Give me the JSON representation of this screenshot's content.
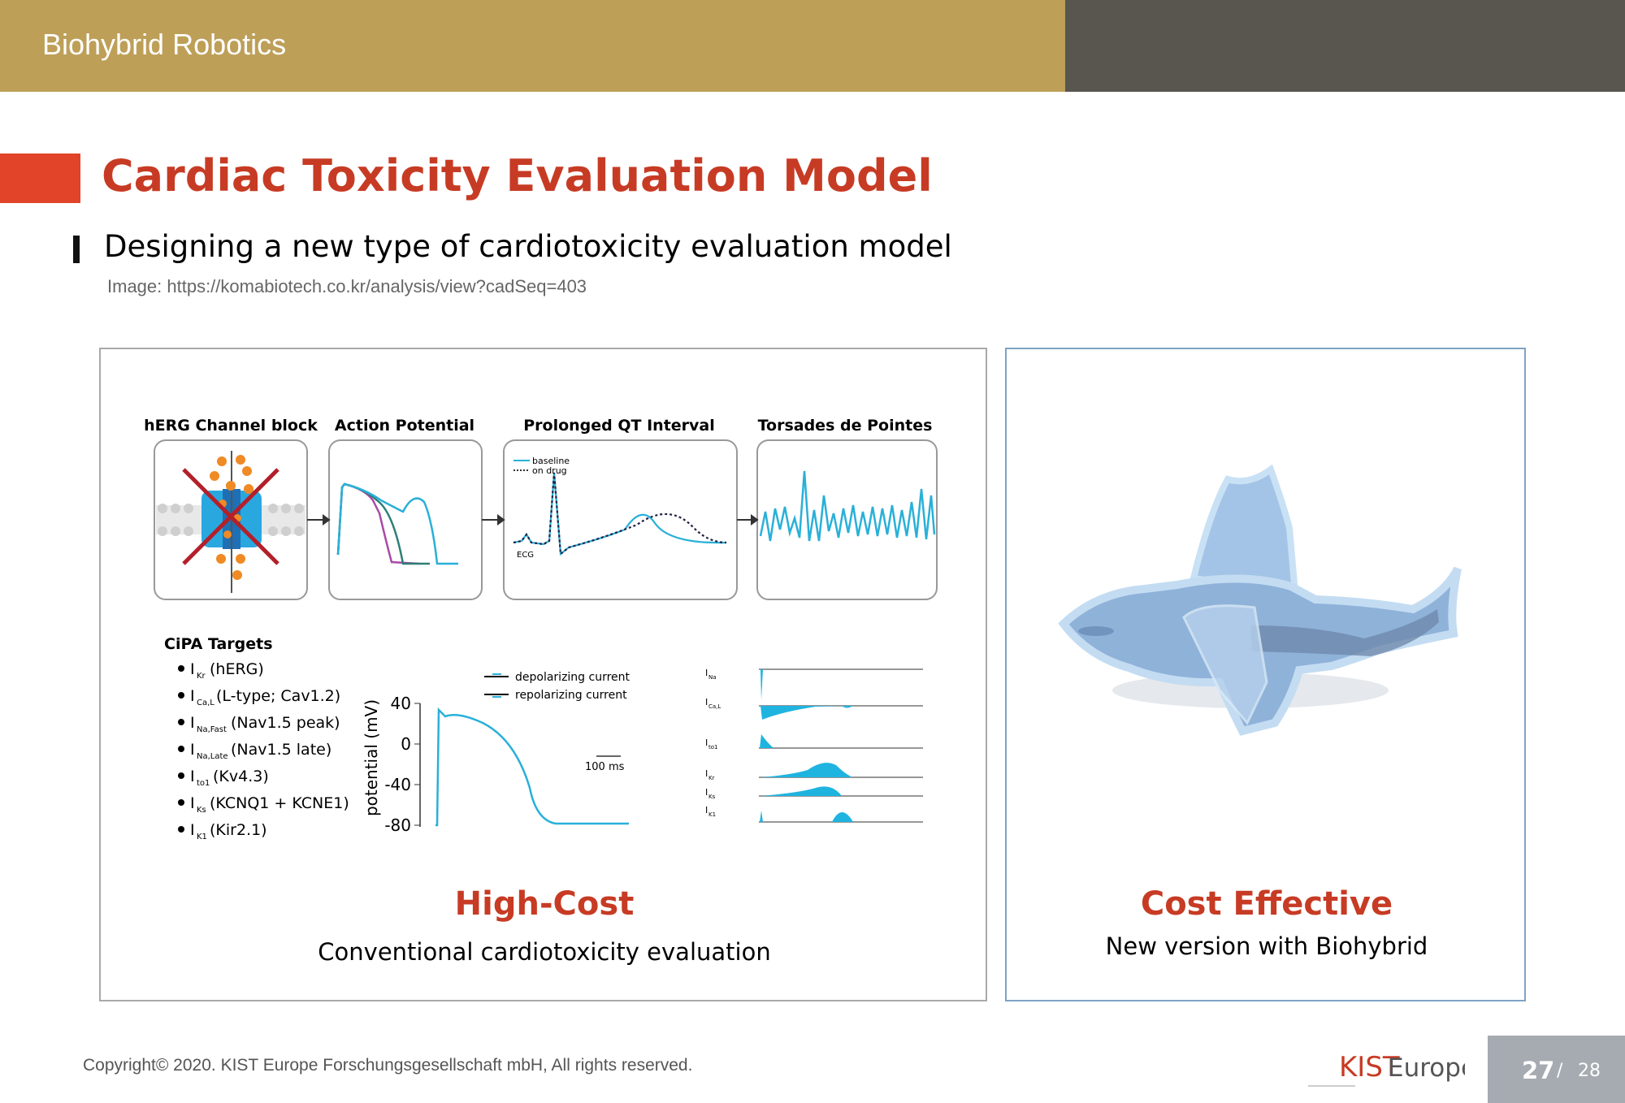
{
  "header": {
    "section_title": "Biohybrid Robotics",
    "colors": {
      "gold": "#bd9f58",
      "dark": "#58564f",
      "accent_red": "#e14428",
      "title_red": "#c73b24"
    }
  },
  "slide": {
    "title": "Cardiac Toxicity Evaluation Model",
    "subtitle": "Designing a new type of cardiotoxicity evaluation model",
    "source": "Image: https://komabiotech.co.kr/analysis/view?cadSeq=403"
  },
  "figure": {
    "panels": [
      "hERG Channel block",
      "Action Potential",
      "Prolonged QT Interval",
      "Torsades de Pointes"
    ],
    "qt_legend": [
      "baseline",
      "on drug"
    ],
    "ecg_label": "ECG",
    "cipa": {
      "heading": "CiPA Targets",
      "items": [
        {
          "base": "I",
          "sub": "Kr",
          "text": "(hERG)"
        },
        {
          "base": "I",
          "sub": "Ca,L",
          "text": "(L-type; Cav1.2)"
        },
        {
          "base": "I",
          "sub": "Na,Fast",
          "text": "(Nav1.5 peak)"
        },
        {
          "base": "I",
          "sub": "Na,Late",
          "text": "(Nav1.5 late)"
        },
        {
          "base": "I",
          "sub": "to1",
          "text": "(Kv4.3)"
        },
        {
          "base": "I",
          "sub": "Ks",
          "text": "(KCNQ1 + KCNE1)"
        },
        {
          "base": "I",
          "sub": "K1",
          "text": "(Kir2.1)"
        }
      ]
    },
    "ap_plot": {
      "ylabel": "potential (mV)",
      "yticks": [
        "40",
        "0",
        "-40",
        "-80"
      ],
      "legend": [
        "depolarizing current",
        "repolarizing current"
      ],
      "scale": "100 ms"
    },
    "currents": [
      {
        "base": "I",
        "sub": "Na"
      },
      {
        "base": "I",
        "sub": "Ca,L"
      },
      {
        "base": "I",
        "sub": "to1"
      },
      {
        "base": "I",
        "sub": "Kr"
      },
      {
        "base": "I",
        "sub": "Ks"
      },
      {
        "base": "I",
        "sub": "K1"
      }
    ]
  },
  "left_caption": {
    "title": "High-Cost",
    "desc": "Conventional cardiotoxicity evaluation"
  },
  "right_caption": {
    "title": "Cost Effective",
    "desc": "New version with Biohybrid"
  },
  "footer": {
    "copyright": "Copyright© 2020. KIST Europe Forschungsgesellschaft mbH, All rights reserved.",
    "logo_text": "KIST Europe",
    "page": "27",
    "separator": "/",
    "total": "28"
  }
}
